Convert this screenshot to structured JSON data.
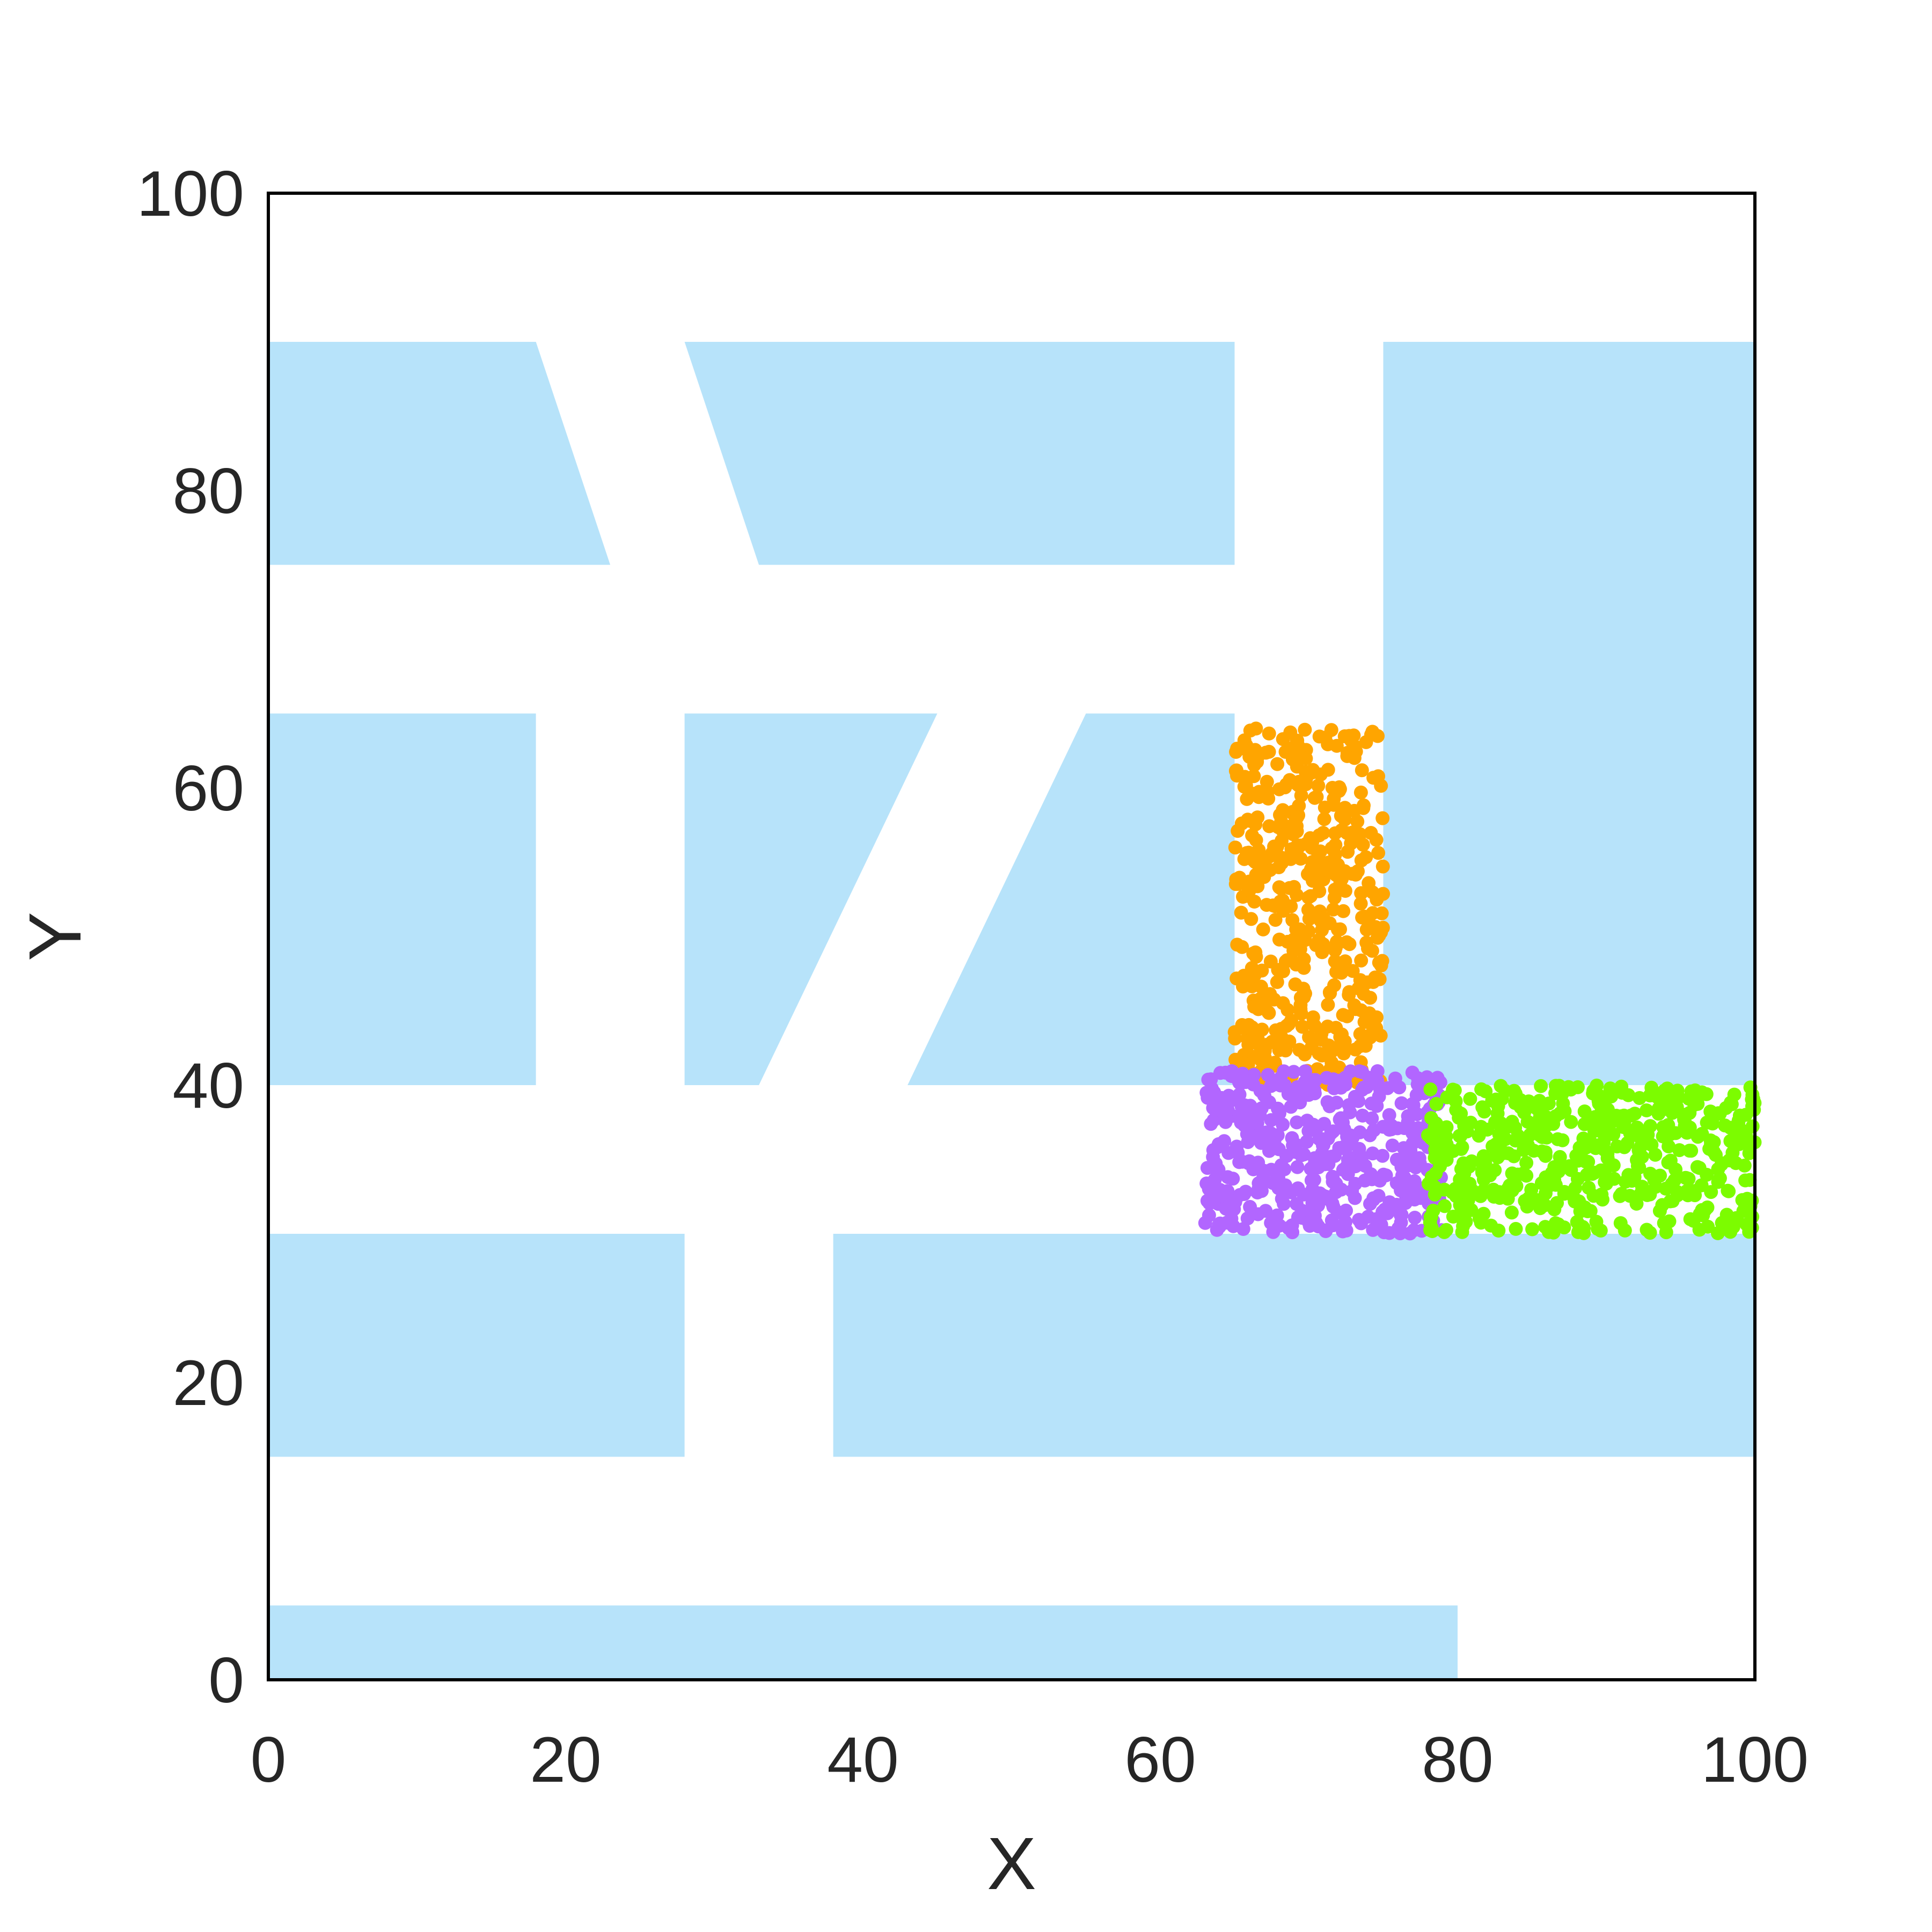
{
  "chart_data": {
    "type": "scatter",
    "title": "",
    "xlabel": "X",
    "ylabel": "Y",
    "xlim": [
      0,
      100
    ],
    "ylim": [
      0,
      100
    ],
    "xticks": [
      "0",
      "20",
      "40",
      "60",
      "80",
      "100"
    ],
    "yticks": [
      "0",
      "20",
      "40",
      "60",
      "80",
      "100"
    ],
    "grid": false,
    "legend": "none",
    "obstacle_color": "#b7e3fa",
    "obstacles": [
      [
        [
          0,
          75
        ],
        [
          23,
          75
        ],
        [
          18,
          90
        ],
        [
          0,
          90
        ]
      ],
      [
        [
          33,
          75
        ],
        [
          65,
          75
        ],
        [
          65,
          90
        ],
        [
          28,
          90
        ]
      ],
      [
        [
          75,
          40
        ],
        [
          100,
          40
        ],
        [
          100,
          90
        ],
        [
          75,
          90
        ]
      ],
      [
        [
          0,
          40
        ],
        [
          18,
          40
        ],
        [
          18,
          65
        ],
        [
          0,
          65
        ]
      ],
      [
        [
          28,
          40
        ],
        [
          33,
          40
        ],
        [
          45,
          65
        ],
        [
          28,
          65
        ]
      ],
      [
        [
          43,
          40
        ],
        [
          65,
          40
        ],
        [
          65,
          65
        ],
        [
          55,
          65
        ]
      ],
      [
        [
          0,
          15
        ],
        [
          28,
          15
        ],
        [
          28,
          30
        ],
        [
          0,
          30
        ]
      ],
      [
        [
          38,
          15
        ],
        [
          100,
          15
        ],
        [
          100,
          30
        ],
        [
          38,
          30
        ]
      ],
      [
        [
          0,
          0
        ],
        [
          80,
          0
        ],
        [
          80,
          5
        ],
        [
          0,
          5
        ]
      ]
    ],
    "series": [
      {
        "color": "#ffa500",
        "count": 480,
        "x_range": [
          65,
          75
        ],
        "y_range": [
          40,
          64
        ],
        "seed": 11
      },
      {
        "color": "#b266ff",
        "count": 460,
        "x_range": [
          63,
          79
        ],
        "y_range": [
          30,
          41
        ],
        "seed": 23
      },
      {
        "color": "#7cfc00",
        "count": 520,
        "x_range": [
          78,
          100
        ],
        "y_range": [
          30,
          40
        ],
        "seed": 37
      }
    ]
  }
}
